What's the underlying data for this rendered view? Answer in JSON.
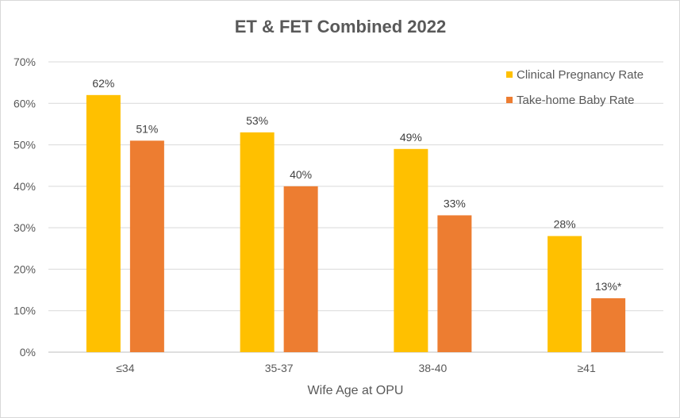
{
  "chart_data": {
    "type": "bar",
    "title": "ET & FET Combined 2022",
    "xlabel": "Wife Age at OPU",
    "ylabel": "",
    "ylim": [
      0,
      70
    ],
    "yticks": [
      0,
      10,
      20,
      30,
      40,
      50,
      60,
      70
    ],
    "ytick_labels": [
      "0%",
      "10%",
      "20%",
      "30%",
      "40%",
      "50%",
      "60%",
      "70%"
    ],
    "grid": true,
    "legend_position": "top-right",
    "categories": [
      "≤34",
      "35-37",
      "38-40",
      "≥41"
    ],
    "series": [
      {
        "name": "Clinical Pregnancy Rate",
        "color": "#FFC000",
        "values": [
          62,
          53,
          49,
          28
        ],
        "labels": [
          "62%",
          "53%",
          "49%",
          "28%"
        ]
      },
      {
        "name": "Take-home Baby Rate",
        "color": "#ED7D31",
        "values": [
          51,
          40,
          33,
          13
        ],
        "labels": [
          "51%",
          "40%",
          "33%",
          "13%*"
        ]
      }
    ]
  }
}
